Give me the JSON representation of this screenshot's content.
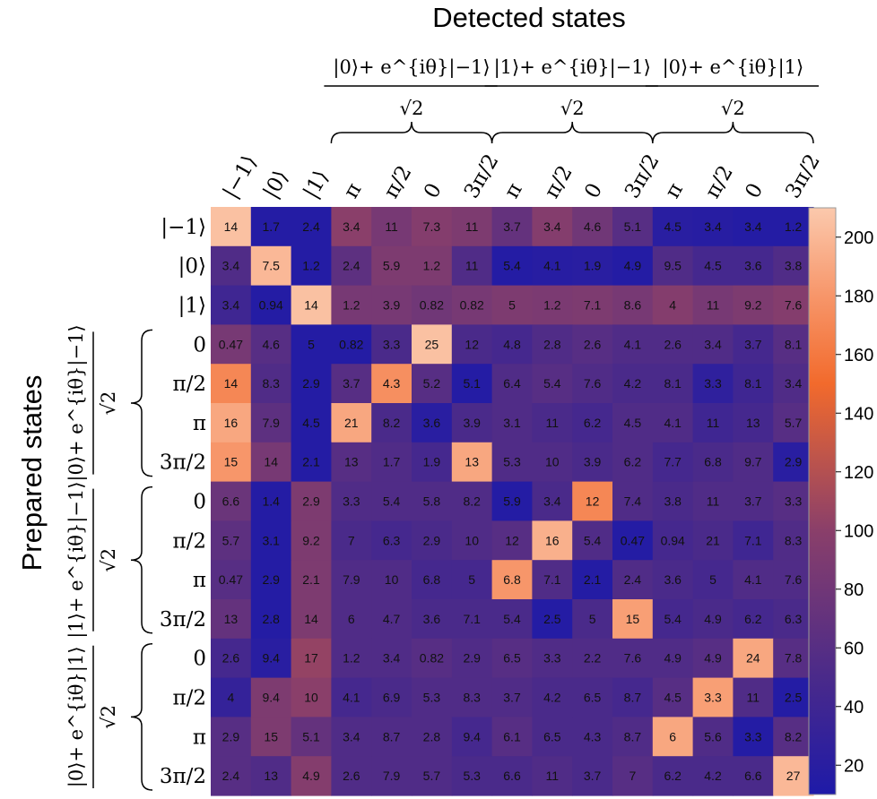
{
  "chart_data": {
    "type": "heatmap",
    "title_top": "Detected states",
    "title_left": "Prepared states",
    "column_labels": [
      "|−1⟩",
      "|0⟩",
      "|1⟩",
      "π",
      "π/2",
      "0",
      "3π/2",
      "π",
      "π/2",
      "0",
      "3π/2",
      "π",
      "π/2",
      "0",
      "3π/2"
    ],
    "row_labels": [
      "|−1⟩",
      "|0⟩",
      "|1⟩",
      "0",
      "π/2",
      "π",
      "3π/2",
      "0",
      "π/2",
      "π",
      "3π/2",
      "0",
      "π/2",
      "π",
      "3π/2"
    ],
    "column_groups": [
      {
        "numerator": "|0⟩+ e^{iθ}|−1⟩",
        "denominator": "√2"
      },
      {
        "numerator": "|1⟩+ e^{iθ}|−1⟩",
        "denominator": "√2"
      },
      {
        "numerator": "|0⟩+ e^{iθ}|1⟩",
        "denominator": "√2"
      }
    ],
    "row_groups": [
      {
        "numerator": "|0⟩+ e^{iθ}|−1⟩",
        "denominator": "√2"
      },
      {
        "numerator": "|1⟩+ e^{iθ}|−1⟩",
        "denominator": "√2"
      },
      {
        "numerator": "|0⟩+ e^{iθ}|1⟩",
        "denominator": "√2"
      }
    ],
    "colorbar": {
      "min": 10,
      "max": 210,
      "ticks": [
        20,
        40,
        60,
        80,
        100,
        120,
        140,
        160,
        180,
        200
      ]
    },
    "counts": [
      [
        205,
        15,
        15,
        100,
        85,
        95,
        90,
        70,
        95,
        80,
        60,
        20,
        18,
        15,
        15
      ],
      [
        55,
        200,
        15,
        65,
        90,
        90,
        55,
        15,
        18,
        20,
        15,
        55,
        45,
        45,
        55
      ],
      [
        40,
        15,
        205,
        85,
        85,
        80,
        85,
        90,
        88,
        90,
        85,
        95,
        85,
        90,
        95
      ],
      [
        85,
        60,
        15,
        15,
        50,
        205,
        50,
        45,
        55,
        60,
        55,
        55,
        55,
        45,
        60
      ],
      [
        170,
        55,
        15,
        60,
        175,
        60,
        15,
        55,
        60,
        55,
        50,
        50,
        25,
        40,
        55
      ],
      [
        190,
        65,
        15,
        190,
        50,
        20,
        50,
        55,
        50,
        45,
        55,
        55,
        40,
        45,
        60
      ],
      [
        180,
        85,
        15,
        60,
        55,
        45,
        190,
        55,
        55,
        50,
        55,
        45,
        50,
        55,
        20
      ],
      [
        75,
        15,
        90,
        55,
        55,
        55,
        55,
        15,
        50,
        170,
        55,
        50,
        55,
        55,
        60
      ],
      [
        65,
        15,
        90,
        50,
        45,
        50,
        55,
        60,
        195,
        55,
        15,
        45,
        50,
        40,
        55
      ],
      [
        60,
        15,
        90,
        55,
        55,
        45,
        45,
        180,
        55,
        15,
        55,
        50,
        45,
        55,
        55
      ],
      [
        70,
        15,
        90,
        55,
        55,
        50,
        50,
        50,
        15,
        50,
        185,
        45,
        50,
        45,
        50
      ],
      [
        45,
        20,
        105,
        55,
        55,
        60,
        55,
        60,
        55,
        55,
        55,
        55,
        60,
        190,
        60
      ],
      [
        30,
        90,
        100,
        45,
        50,
        55,
        55,
        55,
        50,
        50,
        45,
        60,
        185,
        55,
        15
      ],
      [
        60,
        90,
        70,
        55,
        55,
        55,
        45,
        60,
        50,
        50,
        55,
        190,
        55,
        15,
        60
      ],
      [
        60,
        55,
        95,
        55,
        55,
        55,
        50,
        50,
        55,
        50,
        60,
        50,
        50,
        50,
        200
      ]
    ],
    "labels": [
      [
        "14",
        "1.7",
        "2.4",
        "3.4",
        "11",
        "7.3",
        "11",
        "3.7",
        "3.4",
        "4.6",
        "5.1",
        "4.5",
        "3.4",
        "3.4",
        "1.2"
      ],
      [
        "3.4",
        "7.5",
        "1.2",
        "2.4",
        "5.9",
        "1.2",
        "11",
        "5.4",
        "4.1",
        "1.9",
        "4.9",
        "9.5",
        "4.5",
        "3.6",
        "3.8"
      ],
      [
        "3.4",
        "0.94",
        "14",
        "1.2",
        "3.9",
        "0.82",
        "0.82",
        "5",
        "1.2",
        "7.1",
        "8.6",
        "4",
        "11",
        "9.2",
        "7.6"
      ],
      [
        "0.47",
        "4.6",
        "5",
        "0.82",
        "3.3",
        "25",
        "12",
        "4.8",
        "2.8",
        "2.6",
        "4.1",
        "2.6",
        "3.4",
        "3.7",
        "8.1"
      ],
      [
        "14",
        "8.3",
        "2.9",
        "3.7",
        "4.3",
        "5.2",
        "5.1",
        "6.4",
        "5.4",
        "7.6",
        "4.2",
        "8.1",
        "3.3",
        "8.1",
        "3.4"
      ],
      [
        "16",
        "7.9",
        "4.5",
        "21",
        "8.2",
        "3.6",
        "3.9",
        "3.1",
        "11",
        "6.2",
        "4.5",
        "4.1",
        "11",
        "13",
        "5.7"
      ],
      [
        "15",
        "14",
        "2.1",
        "13",
        "1.7",
        "1.9",
        "13",
        "5.3",
        "10",
        "3.9",
        "6.2",
        "7.7",
        "6.8",
        "9.7",
        "2.9"
      ],
      [
        "6.6",
        "1.4",
        "2.9",
        "3.3",
        "5.4",
        "5.8",
        "8.2",
        "5.9",
        "3.4",
        "12",
        "7.4",
        "3.8",
        "11",
        "3.7",
        "3.3"
      ],
      [
        "5.7",
        "3.1",
        "9.2",
        "7",
        "6.3",
        "2.9",
        "10",
        "12",
        "16",
        "5.4",
        "0.47",
        "0.94",
        "21",
        "7.1",
        "8.3"
      ],
      [
        "0.47",
        "2.9",
        "2.1",
        "7.9",
        "10",
        "6.8",
        "5",
        "6.8",
        "7.1",
        "2.1",
        "2.4",
        "3.6",
        "5",
        "4.1",
        "7.6"
      ],
      [
        "13",
        "2.8",
        "14",
        "6",
        "4.7",
        "3.6",
        "7.1",
        "5.4",
        "2.5",
        "5",
        "15",
        "5.4",
        "4.9",
        "6.2",
        "6.3"
      ],
      [
        "2.6",
        "9.4",
        "17",
        "1.2",
        "3.4",
        "0.82",
        "2.9",
        "6.5",
        "3.3",
        "2.2",
        "7.6",
        "4.9",
        "4.9",
        "24",
        "7.8"
      ],
      [
        "4",
        "9.4",
        "10",
        "4.1",
        "6.9",
        "5.3",
        "8.3",
        "3.7",
        "4.2",
        "6.5",
        "8.7",
        "4.5",
        "3.3",
        "11",
        "2.5"
      ],
      [
        "2.9",
        "15",
        "5.1",
        "3.4",
        "8.7",
        "2.8",
        "9.4",
        "6.1",
        "6.5",
        "4.3",
        "8.7",
        "6",
        "5.6",
        "3.3",
        "8.2"
      ],
      [
        "2.4",
        "13",
        "4.9",
        "2.6",
        "7.9",
        "5.7",
        "5.3",
        "6.6",
        "11",
        "3.7",
        "7",
        "6.2",
        "4.2",
        "6.6",
        "27"
      ]
    ]
  }
}
